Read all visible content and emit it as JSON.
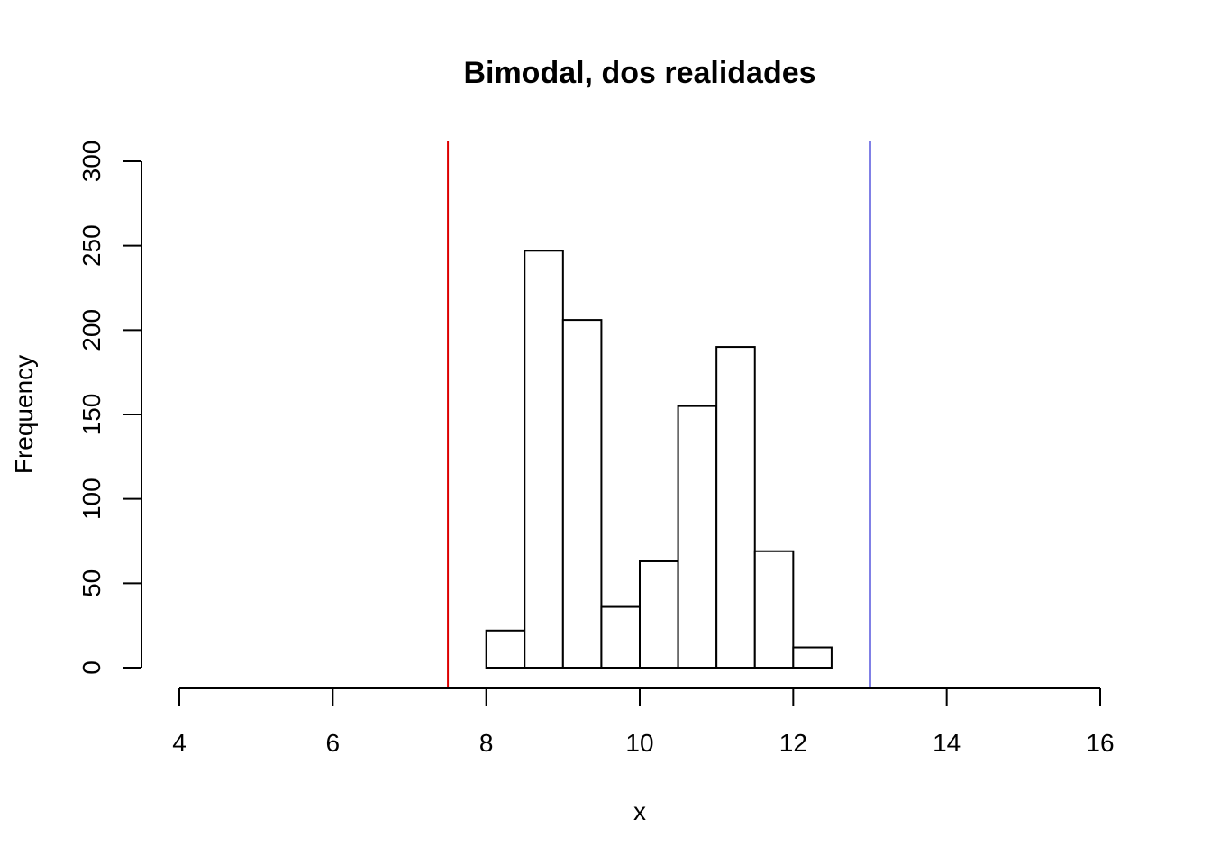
{
  "chart_data": {
    "type": "bar",
    "title": "Bimodal, dos realidades",
    "xlabel": "x",
    "ylabel": "Frequency",
    "xlim": [
      4,
      16
    ],
    "ylim": [
      0,
      300
    ],
    "x_ticks": [
      "4",
      "6",
      "8",
      "10",
      "12",
      "14",
      "16"
    ],
    "y_ticks": [
      "0",
      "50",
      "100",
      "150",
      "200",
      "250",
      "300"
    ],
    "bins": [
      {
        "from": 8.0,
        "to": 8.5,
        "count": 22
      },
      {
        "from": 8.5,
        "to": 9.0,
        "count": 247
      },
      {
        "from": 9.0,
        "to": 9.5,
        "count": 206
      },
      {
        "from": 9.5,
        "to": 10.0,
        "count": 36
      },
      {
        "from": 10.0,
        "to": 10.5,
        "count": 63
      },
      {
        "from": 10.5,
        "to": 11.0,
        "count": 155
      },
      {
        "from": 11.0,
        "to": 11.5,
        "count": 190
      },
      {
        "from": 11.5,
        "to": 12.0,
        "count": 69
      },
      {
        "from": 12.0,
        "to": 12.5,
        "count": 12
      }
    ],
    "vlines": [
      {
        "x": 7.5,
        "color": "#dd0000"
      },
      {
        "x": 13.0,
        "color": "#0000cc"
      }
    ],
    "grid": false,
    "legend": "none"
  }
}
